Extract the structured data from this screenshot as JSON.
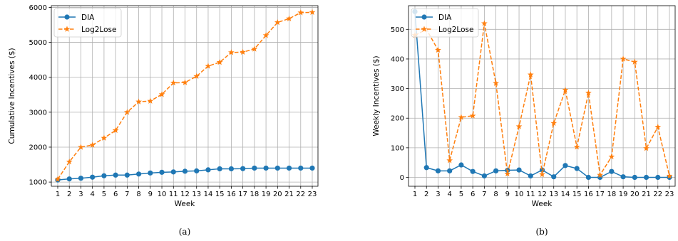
{
  "chart_data": [
    {
      "type": "line",
      "caption": "(a)",
      "xlabel": "Week",
      "ylabel": "Cumulative Incentives ($)",
      "categories": [
        "1",
        "2",
        "3",
        "4",
        "5",
        "6",
        "7",
        "8",
        "9",
        "10",
        "11",
        "12",
        "13",
        "14",
        "15",
        "16",
        "17",
        "18",
        "19",
        "20",
        "21",
        "22",
        "23"
      ],
      "yticks": [
        1000,
        2000,
        3000,
        4000,
        5000,
        6000
      ],
      "ylim": [
        880,
        6050
      ],
      "grid": true,
      "legend_position": "top-left",
      "series": [
        {
          "name": "DIA",
          "color": "#1f77b4",
          "style": "solid",
          "marker": "circle",
          "values": [
            1060,
            1090,
            1110,
            1140,
            1180,
            1200,
            1200,
            1230,
            1260,
            1280,
            1290,
            1310,
            1320,
            1350,
            1380,
            1380,
            1385,
            1400,
            1400,
            1400,
            1400,
            1400,
            1400
          ]
        },
        {
          "name": "Log2Lose",
          "color": "#ff7f0e",
          "style": "dashed",
          "marker": "star",
          "values": [
            1080,
            1580,
            2000,
            2060,
            2260,
            2480,
            3000,
            3300,
            3320,
            3510,
            3840,
            3850,
            4030,
            4320,
            4430,
            4710,
            4720,
            4810,
            5200,
            5570,
            5680,
            5850,
            5860
          ]
        }
      ]
    },
    {
      "type": "line",
      "caption": "(b)",
      "xlabel": "Week",
      "ylabel": "Weekly Incentives ($)",
      "categories": [
        "1",
        "2",
        "3",
        "4",
        "5",
        "6",
        "7",
        "8",
        "9",
        "10",
        "11",
        "12",
        "13",
        "14",
        "15",
        "16",
        "17",
        "18",
        "19",
        "20",
        "21",
        "22",
        "23"
      ],
      "yticks": [
        0,
        100,
        200,
        300,
        400,
        500
      ],
      "ylim": [
        -30,
        580
      ],
      "grid": true,
      "legend_position": "top-left",
      "series": [
        {
          "name": "DIA",
          "color": "#1f77b4",
          "style": "solid",
          "marker": "circle",
          "values": [
            560,
            33,
            22,
            22,
            42,
            20,
            5,
            22,
            24,
            25,
            5,
            25,
            2,
            40,
            30,
            0,
            0,
            20,
            2,
            0,
            0,
            0,
            0
          ]
        },
        {
          "name": "Log2Lose",
          "color": "#ff7f0e",
          "style": "dashed",
          "marker": "star",
          "values": [
            480,
            500,
            430,
            57,
            203,
            208,
            520,
            318,
            12,
            172,
            347,
            10,
            183,
            295,
            103,
            285,
            8,
            70,
            400,
            390,
            98,
            170,
            5
          ]
        }
      ]
    }
  ]
}
